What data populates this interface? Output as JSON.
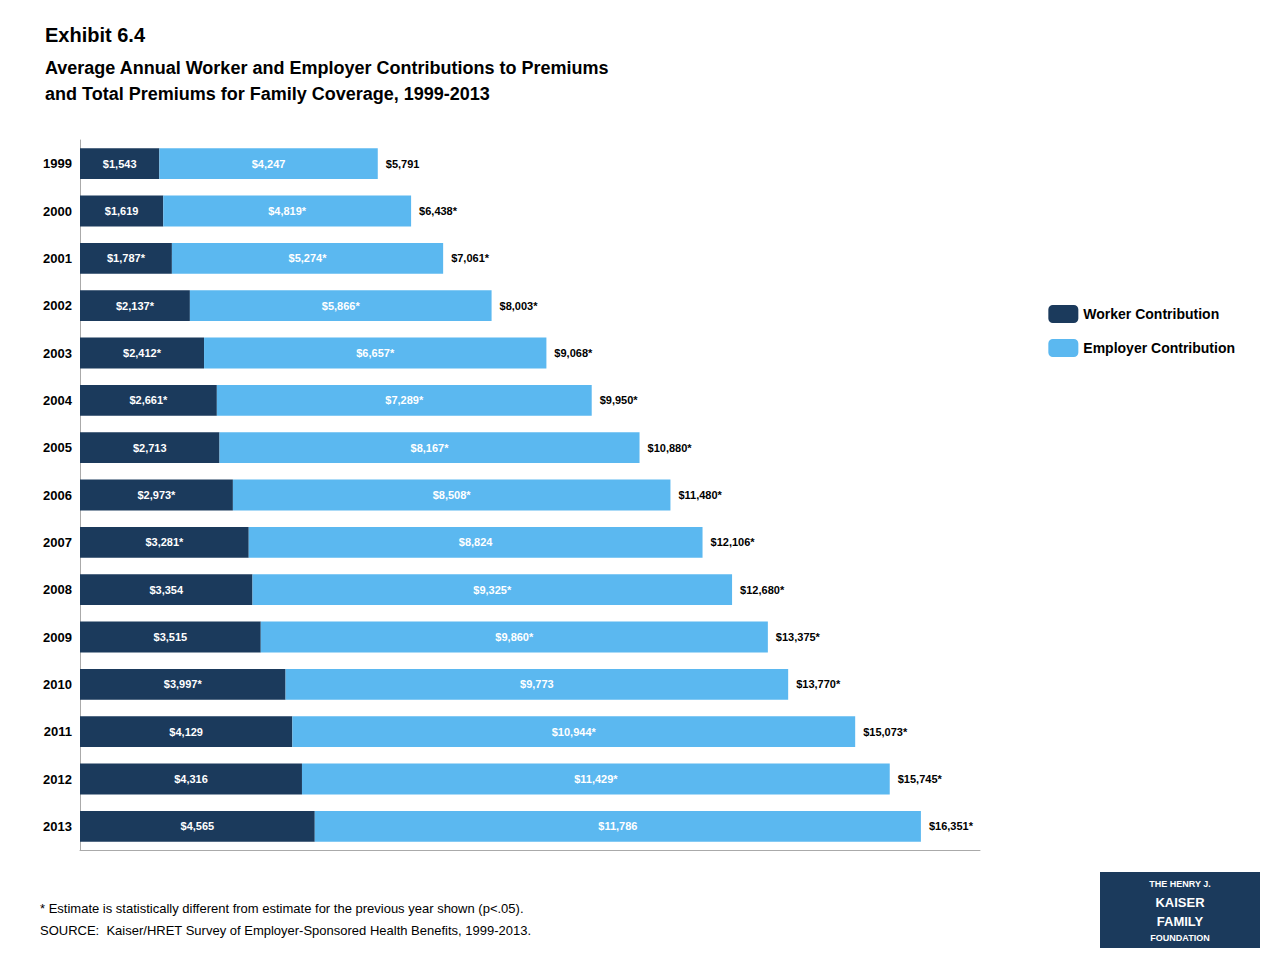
{
  "chart_data": {
    "type": "bar",
    "orientation": "horizontal",
    "stacked": true,
    "title": "Exhibit 6.4",
    "subtitle": [
      "Average Annual Worker and Employer Contributions to Premiums",
      "and Total Premiums for Family Coverage, 1999-2013"
    ],
    "categories": [
      "1999",
      "2000",
      "2001",
      "2002",
      "2003",
      "2004",
      "2005",
      "2006",
      "2007",
      "2008",
      "2009",
      "2010",
      "2011",
      "2012",
      "2013"
    ],
    "series": [
      {
        "name": "Worker Contribution",
        "color": "#1b3a5c",
        "values": [
          1543,
          1619,
          1787,
          2137,
          2412,
          2661,
          2713,
          2973,
          3281,
          3354,
          3515,
          3997,
          4129,
          4316,
          4565
        ],
        "value_labels": [
          "$1,543",
          "$1,619",
          "$1,787*",
          "$2,137*",
          "$2,412*",
          "$2,661*",
          "$2,713",
          "$2,973*",
          "$3,281*",
          "$3,354",
          "$3,515",
          "$3,997*",
          "$4,129",
          "$4,316",
          "$4,565"
        ]
      },
      {
        "name": "Employer Contribution",
        "color": "#5bb8f0",
        "values": [
          4247,
          4819,
          5274,
          5866,
          6657,
          7289,
          8167,
          8508,
          8824,
          9325,
          9860,
          9773,
          10944,
          11429,
          11786
        ],
        "value_labels": [
          "$4,247",
          "$4,819*",
          "$5,274*",
          "$5,866*",
          "$6,657*",
          "$7,289*",
          "$8,167*",
          "$8,508*",
          "$8,824",
          "$9,325*",
          "$9,860*",
          "$9,773",
          "$10,944*",
          "$11,429*",
          "$11,786"
        ]
      }
    ],
    "totals": [
      5791,
      6438,
      7061,
      8003,
      9068,
      9950,
      10880,
      11480,
      12106,
      12680,
      13375,
      13770,
      15073,
      15745,
      16351
    ],
    "total_labels": [
      "$5,791",
      "$6,438*",
      "$7,061*",
      "$8,003*",
      "$9,068*",
      "$9,950*",
      "$10,880*",
      "$11,480*",
      "$12,106*",
      "$12,680*",
      "$13,375*",
      "$13,770*",
      "$15,073*",
      "$15,745*",
      "$16,351*"
    ],
    "xlim": [
      0,
      17500
    ],
    "tick_labels": "y",
    "grid": false,
    "legend": "right",
    "data_labels": true,
    "annotations": {
      "footnotes": [
        "* Estimate is statistically different from estimate for the previous year shown (p<.05).",
        "SOURCE:  Kaiser/HRET Survey of Employer-Sponsored Health Benefits, 1999-2013."
      ],
      "logo": [
        "THE HENRY J.",
        "KAISER",
        "FAMILY",
        "FOUNDATION"
      ]
    }
  }
}
